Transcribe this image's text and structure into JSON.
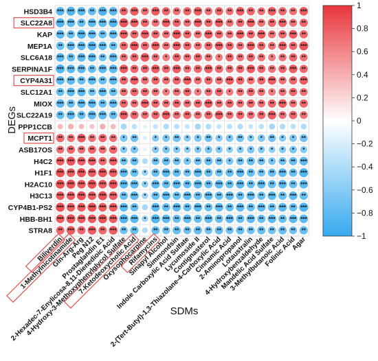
{
  "chart_data": {
    "type": "heatmap",
    "xlabel": "SDMs",
    "ylabel": "DEGs",
    "legend": "right",
    "colorbar": {
      "ticks": [
        "1",
        "0.8",
        "0.6",
        "0.4",
        "0.2",
        "0",
        "−0.2",
        "−0.4",
        "−0.6",
        "−0.8",
        "−1"
      ],
      "values": [
        1,
        0.8,
        0.6,
        0.4,
        0.2,
        0,
        -0.2,
        -0.4,
        -0.6,
        -0.8,
        -1
      ],
      "range": [
        -1,
        1
      ],
      "colors": {
        "high": "#e8363c",
        "mid": "#ffffff",
        "low": "#36a9ee"
      }
    },
    "rows": [
      "HSD3B4",
      "SLC22A8",
      "KAP",
      "MEP1A",
      "SLC6A18",
      "SERPINA1F",
      "CYP4A31",
      "SLC12A1",
      "MIOX",
      "SLC22A19",
      "PPP1CCB",
      "MCPT1",
      "ASB17OS",
      "H4C2",
      "H1F1",
      "H2AC10",
      "H3C13",
      "CYP4B1-PS2",
      "HBB-BH1",
      "STRA8"
    ],
    "highlighted_rows": [
      "SLC22A8",
      "CYP4A31",
      "MCPT1"
    ],
    "columns": [
      "Biliverdin",
      "1-Methylnicotinamide",
      "Gln-Arg-Arg",
      "Peg N12",
      "Prostaglandin E1",
      "2-Hexadec-7-Enylicosa-8,11-Dienedioic Acid",
      "4-Hydroxy-3-Methoxyphenylglycol Sulfate",
      "7-Ketodeoxycholic Acid",
      "Oxysophocarpine",
      "Rifamycins",
      "Sinapyl Alcohol",
      "Simmondsin",
      "Indole Carboxylic Acid Sulfate",
      "Lycumoside II",
      "Contignasterol",
      "2-(Tert-Butyl)-1,3-Thiazolane-4-Carboxylic Acid",
      "Cinnamic Acid",
      "2-Aminopropanol",
      "Lotaustralin",
      "4-Hydroxybenzaldehyde",
      "Mandelic Acid Sulfate",
      "3-Methylbutanoic Acid",
      "Folinic Acid",
      "Agar"
    ],
    "highlighted_columns": [
      "Biliverdin",
      "1-Methylnicotinamide",
      "7-Ketodeoxycholic Acid",
      "Rifamycins"
    ],
    "values": [
      [
        -0.8,
        -0.85,
        -0.8,
        -0.75,
        -0.85,
        -0.8,
        0.75,
        0.8,
        0.7,
        0.8,
        0.75,
        0.7,
        0.75,
        0.8,
        0.7,
        0.75,
        0.7,
        0.8,
        0.75,
        0.7,
        0.8,
        0.75,
        0.7,
        0.8
      ],
      [
        -0.85,
        -0.8,
        -0.75,
        -0.8,
        -0.8,
        -0.85,
        0.85,
        0.8,
        0.75,
        0.7,
        0.8,
        0.75,
        0.7,
        0.8,
        0.75,
        0.8,
        0.7,
        0.75,
        0.8,
        0.7,
        0.75,
        0.8,
        0.7,
        0.75
      ],
      [
        -0.8,
        -0.75,
        -0.85,
        -0.8,
        -0.75,
        -0.8,
        0.8,
        0.75,
        0.8,
        0.75,
        0.7,
        0.85,
        0.75,
        0.7,
        0.8,
        0.75,
        0.7,
        0.8,
        0.75,
        0.8,
        0.7,
        0.75,
        0.8,
        0.75
      ],
      [
        -0.75,
        -0.8,
        -0.8,
        -0.85,
        -0.8,
        -0.75,
        0.75,
        0.85,
        0.75,
        0.8,
        0.7,
        0.8,
        0.75,
        0.7,
        0.75,
        0.8,
        0.75,
        0.7,
        0.8,
        0.75,
        0.7,
        0.8,
        0.75,
        0.85
      ],
      [
        -0.8,
        -0.75,
        -0.8,
        -0.8,
        -0.7,
        -0.8,
        0.7,
        0.75,
        0.8,
        0.7,
        0.65,
        0.75,
        0.7,
        0.75,
        0.7,
        0.65,
        0.75,
        0.7,
        0.75,
        0.7,
        0.65,
        0.7,
        0.75,
        0.7
      ],
      [
        -0.85,
        -0.8,
        -0.8,
        -0.75,
        -0.8,
        -0.8,
        0.8,
        0.75,
        0.75,
        0.8,
        0.75,
        0.8,
        0.7,
        0.75,
        0.8,
        0.75,
        0.7,
        0.75,
        0.8,
        0.75,
        0.7,
        0.75,
        0.8,
        0.75
      ],
      [
        -0.8,
        -0.8,
        -0.75,
        -0.8,
        -0.75,
        -0.8,
        0.75,
        0.8,
        0.7,
        0.75,
        0.7,
        0.75,
        0.8,
        0.7,
        0.75,
        0.7,
        0.8,
        0.75,
        0.7,
        0.75,
        0.8,
        0.7,
        0.75,
        0.8
      ],
      [
        -0.75,
        -0.8,
        -0.8,
        -0.7,
        -0.8,
        -0.75,
        0.7,
        0.75,
        0.75,
        0.7,
        0.65,
        0.7,
        0.75,
        0.65,
        0.7,
        0.75,
        0.65,
        0.7,
        0.75,
        0.7,
        0.65,
        0.7,
        0.75,
        0.7
      ],
      [
        -0.8,
        -0.75,
        -0.8,
        -0.8,
        -0.75,
        -0.8,
        0.75,
        0.7,
        0.8,
        0.75,
        0.7,
        0.75,
        0.7,
        0.75,
        0.8,
        0.7,
        0.75,
        0.7,
        0.75,
        0.7,
        0.75,
        0.8,
        0.7,
        0.75
      ],
      [
        -0.75,
        -0.8,
        -0.75,
        -0.8,
        -0.8,
        -0.75,
        0.8,
        0.75,
        0.7,
        0.75,
        0.8,
        0.7,
        0.75,
        0.7,
        0.75,
        0.8,
        0.7,
        0.75,
        0.7,
        0.75,
        0.8,
        0.7,
        0.75,
        0.7
      ],
      [
        0.35,
        0.4,
        0.35,
        0.3,
        0.4,
        0.35,
        -0.45,
        -0.35,
        -0.15,
        -0.3,
        -0.4,
        -0.35,
        -0.3,
        -0.45,
        -0.4,
        -0.3,
        -0.35,
        -0.4,
        -0.3,
        -0.35,
        -0.45,
        -0.4,
        -0.35,
        -0.4
      ],
      [
        0.75,
        0.7,
        0.8,
        0.7,
        0.75,
        0.7,
        -0.65,
        -0.7,
        -0.2,
        -0.6,
        -0.65,
        -0.7,
        -0.6,
        -0.65,
        -0.7,
        -0.6,
        -0.65,
        -0.7,
        -0.6,
        -0.65,
        -0.7,
        -0.6,
        -0.65,
        -0.7
      ],
      [
        0.7,
        0.75,
        0.7,
        0.75,
        0.7,
        0.75,
        -0.6,
        -0.65,
        -0.15,
        -0.6,
        -0.65,
        -0.6,
        -0.55,
        -0.6,
        -0.65,
        -0.6,
        -0.55,
        -0.6,
        -0.65,
        -0.6,
        -0.55,
        -0.6,
        -0.65,
        -0.6
      ],
      [
        0.8,
        0.85,
        0.8,
        0.8,
        0.75,
        0.8,
        -0.7,
        -0.75,
        -0.4,
        -0.7,
        -0.75,
        -0.7,
        -0.65,
        -0.7,
        -0.75,
        -0.7,
        -0.65,
        -0.7,
        -0.75,
        -0.7,
        -0.65,
        -0.7,
        -0.75,
        -0.8
      ],
      [
        0.85,
        0.8,
        0.85,
        0.8,
        0.85,
        0.8,
        -0.8,
        -0.75,
        -0.5,
        -0.75,
        -0.8,
        -0.75,
        -0.7,
        -0.8,
        -0.75,
        -0.7,
        -0.75,
        -0.8,
        -0.75,
        -0.7,
        -0.75,
        -0.8,
        -0.75,
        -0.85
      ],
      [
        0.85,
        0.85,
        0.8,
        0.85,
        0.8,
        0.85,
        -0.8,
        -0.8,
        -0.55,
        -0.8,
        -0.75,
        -0.8,
        -0.75,
        -0.8,
        -0.75,
        -0.8,
        -0.75,
        -0.8,
        -0.75,
        -0.8,
        -0.75,
        -0.8,
        -0.75,
        -0.8
      ],
      [
        0.8,
        0.8,
        0.85,
        0.8,
        0.85,
        0.8,
        -0.75,
        -0.8,
        -0.5,
        -0.75,
        -0.8,
        -0.75,
        -0.8,
        -0.75,
        -0.8,
        -0.75,
        -0.8,
        -0.75,
        -0.8,
        -0.75,
        -0.8,
        -0.75,
        -0.8,
        -0.75
      ],
      [
        0.85,
        0.8,
        0.8,
        0.85,
        0.8,
        0.8,
        -0.8,
        -0.75,
        -0.45,
        -0.8,
        -0.75,
        -0.8,
        -0.75,
        -0.8,
        -0.75,
        -0.8,
        -0.75,
        -0.8,
        -0.75,
        -0.8,
        -0.75,
        -0.8,
        -0.75,
        -0.85
      ],
      [
        0.8,
        0.85,
        0.8,
        0.8,
        0.85,
        0.8,
        -0.85,
        -0.8,
        -0.5,
        -0.85,
        -0.8,
        -0.75,
        -0.8,
        -0.75,
        -0.8,
        -0.75,
        -0.8,
        -0.75,
        -0.8,
        -0.75,
        -0.8,
        -0.75,
        -0.8,
        -0.8
      ],
      [
        0.75,
        0.8,
        0.75,
        0.8,
        0.75,
        0.8,
        -0.7,
        -0.75,
        -0.4,
        -0.75,
        -0.7,
        -0.75,
        -0.7,
        -0.75,
        -0.7,
        -0.75,
        -0.7,
        -0.75,
        -0.7,
        -0.75,
        -0.7,
        -0.75,
        -0.7,
        -0.75
      ]
    ]
  }
}
